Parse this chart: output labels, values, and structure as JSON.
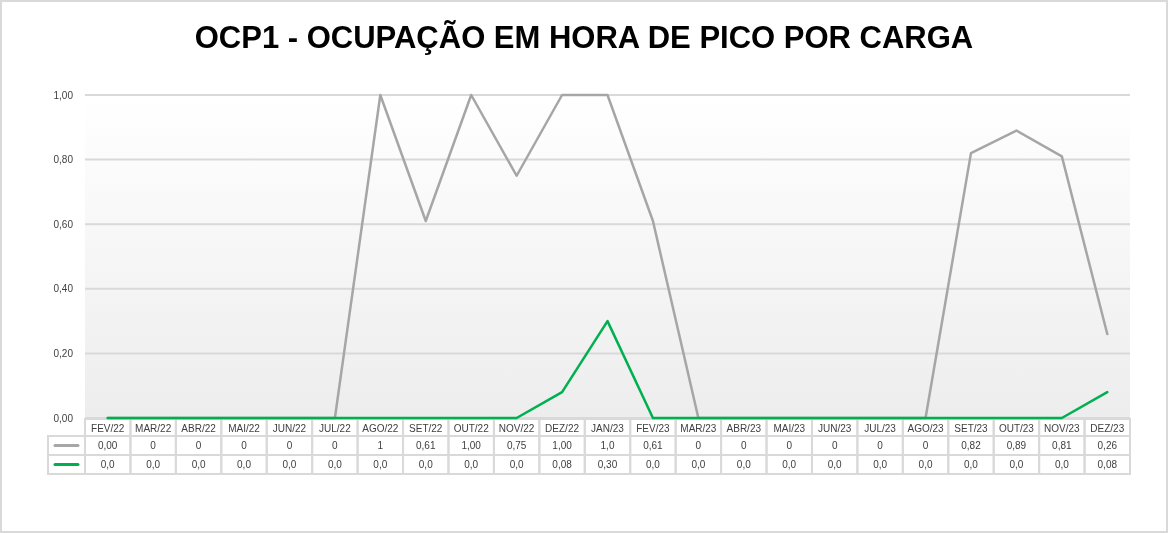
{
  "chart_data": {
    "type": "line",
    "title": "OCP1 - OCUPAÇÃO EM HORA DE PICO POR CARGA",
    "categories": [
      "FEV/22",
      "MAR/22",
      "ABR/22",
      "MAI/22",
      "JUN/22",
      "JUL/22",
      "AGO/22",
      "SET/22",
      "OUT/22",
      "NOV/22",
      "DEZ/22",
      "JAN/23",
      "FEV/23",
      "MAR/23",
      "ABR/23",
      "MAI/23",
      "JUN/23",
      "JUL/23",
      "AGO/23",
      "SET/23",
      "OUT/23",
      "NOV/23",
      "DEZ/23"
    ],
    "series": [
      {
        "color": "#a6a6a6",
        "values": [
          0,
          0,
          0,
          0,
          0,
          0,
          1,
          0.61,
          1,
          0.75,
          1,
          1,
          0.61,
          0,
          0,
          0,
          0,
          0,
          0,
          0.82,
          0.89,
          0.81,
          0.26
        ],
        "value_labels": [
          "0,00",
          "0",
          "0",
          "0",
          "0",
          "0",
          "1",
          "0,61",
          "1,00",
          "0,75",
          "1,00",
          "1,0",
          "0,61",
          "0",
          "0",
          "0",
          "0",
          "0",
          "0",
          "0,82",
          "0,89",
          "0,81",
          "0,26"
        ]
      },
      {
        "color": "#00b050",
        "values": [
          0,
          0,
          0,
          0,
          0,
          0,
          0,
          0,
          0,
          0,
          0.08,
          0.3,
          0,
          0,
          0,
          0,
          0,
          0,
          0,
          0,
          0,
          0,
          0.08
        ],
        "value_labels": [
          "0,0",
          "0,0",
          "0,0",
          "0,0",
          "0,0",
          "0,0",
          "0,0",
          "0,0",
          "0,0",
          "0,0",
          "0,08",
          "0,30",
          "0,0",
          "0,0",
          "0,0",
          "0,0",
          "0,0",
          "0,0",
          "0,0",
          "0,0",
          "0,0",
          "0,0",
          "0,08"
        ]
      }
    ],
    "ylim": [
      0,
      1
    ],
    "yticks": [
      {
        "value": 0,
        "label": "0,00"
      },
      {
        "value": 0.2,
        "label": "0,20"
      },
      {
        "value": 0.4,
        "label": "0,40"
      },
      {
        "value": 0.6,
        "label": "0,60"
      },
      {
        "value": 0.8,
        "label": "0,80"
      },
      {
        "value": 1,
        "label": "1,00"
      }
    ],
    "grid": "y"
  }
}
